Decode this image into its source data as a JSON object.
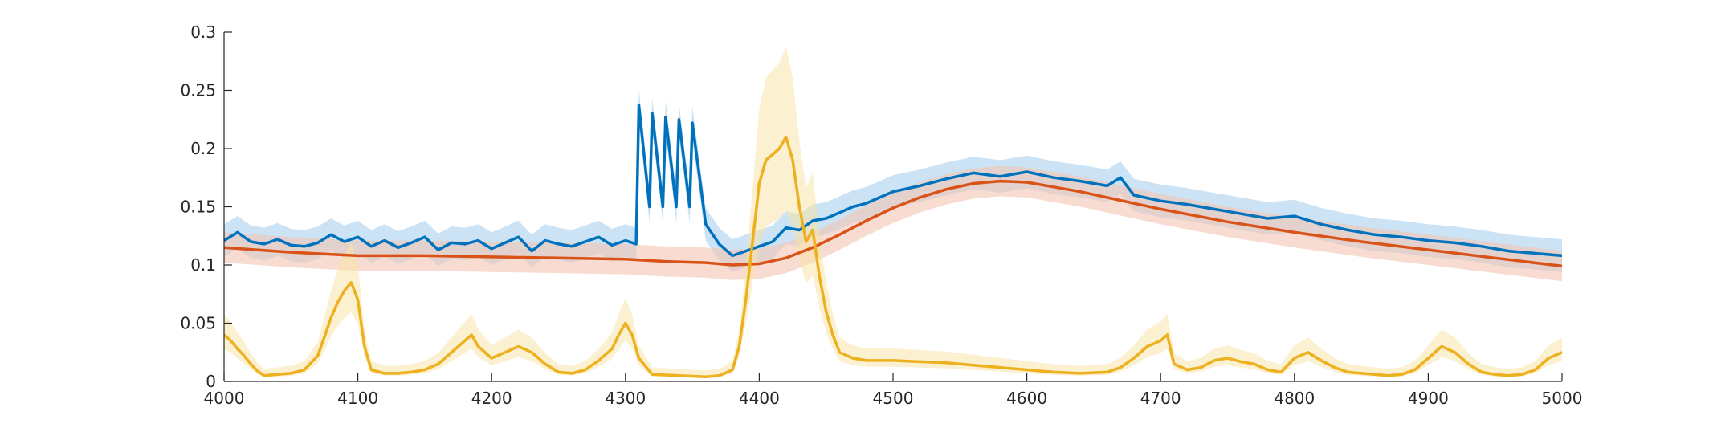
{
  "chart_data": {
    "type": "line",
    "title": "",
    "xlabel": "",
    "ylabel": "",
    "xlim": [
      4000,
      5000
    ],
    "ylim": [
      0,
      0.3
    ],
    "grid": false,
    "legend": "none",
    "x_ticks": [
      4000,
      4100,
      4200,
      4300,
      4400,
      4500,
      4600,
      4700,
      4800,
      4900,
      5000
    ],
    "y_ticks": [
      0,
      0.05,
      0.1,
      0.15,
      0.2,
      0.25,
      0.3
    ],
    "x_tick_labels": [
      "4000",
      "4100",
      "4200",
      "4300",
      "4400",
      "4500",
      "4600",
      "4700",
      "4800",
      "4900",
      "5000"
    ],
    "y_tick_labels": [
      "0",
      "0.05",
      "0.1",
      "0.15",
      "0.2",
      "0.25",
      "0.3"
    ],
    "series": [
      {
        "color": "#0072bd",
        "band_color": "#a8d0ec",
        "x": [
          4000,
          4010,
          4020,
          4030,
          4040,
          4050,
          4060,
          4070,
          4080,
          4090,
          4100,
          4110,
          4120,
          4130,
          4140,
          4150,
          4160,
          4170,
          4180,
          4190,
          4200,
          4210,
          4220,
          4230,
          4240,
          4250,
          4260,
          4270,
          4280,
          4290,
          4300,
          4308,
          4310,
          4318,
          4320,
          4328,
          4330,
          4338,
          4340,
          4348,
          4350,
          4360,
          4370,
          4380,
          4390,
          4400,
          4410,
          4420,
          4430,
          4440,
          4450,
          4460,
          4470,
          4480,
          4490,
          4500,
          4520,
          4540,
          4560,
          4580,
          4600,
          4620,
          4640,
          4660,
          4670,
          4680,
          4700,
          4720,
          4740,
          4760,
          4780,
          4800,
          4820,
          4840,
          4860,
          4880,
          4900,
          4920,
          4940,
          4960,
          4980,
          5000
        ],
        "y": [
          0.121,
          0.128,
          0.12,
          0.118,
          0.122,
          0.117,
          0.116,
          0.119,
          0.126,
          0.12,
          0.124,
          0.116,
          0.121,
          0.115,
          0.119,
          0.124,
          0.113,
          0.119,
          0.118,
          0.121,
          0.114,
          0.119,
          0.124,
          0.112,
          0.121,
          0.118,
          0.116,
          0.12,
          0.124,
          0.117,
          0.121,
          0.118,
          0.237,
          0.15,
          0.23,
          0.15,
          0.227,
          0.15,
          0.225,
          0.15,
          0.222,
          0.135,
          0.118,
          0.108,
          0.112,
          0.116,
          0.12,
          0.132,
          0.13,
          0.138,
          0.14,
          0.145,
          0.15,
          0.153,
          0.158,
          0.163,
          0.168,
          0.174,
          0.179,
          0.176,
          0.18,
          0.175,
          0.172,
          0.168,
          0.175,
          0.16,
          0.155,
          0.152,
          0.148,
          0.144,
          0.14,
          0.142,
          0.135,
          0.13,
          0.126,
          0.124,
          0.121,
          0.119,
          0.116,
          0.112,
          0.11,
          0.108
        ]
      },
      {
        "color": "#d95319",
        "band_color": "#f3c4b2",
        "x": [
          4000,
          4050,
          4100,
          4150,
          4200,
          4250,
          4300,
          4330,
          4360,
          4380,
          4400,
          4420,
          4440,
          4460,
          4480,
          4500,
          4520,
          4540,
          4560,
          4580,
          4600,
          4620,
          4640,
          4660,
          4680,
          4700,
          4750,
          4800,
          4850,
          4900,
          4950,
          5000
        ],
        "y": [
          0.115,
          0.111,
          0.108,
          0.108,
          0.107,
          0.106,
          0.105,
          0.103,
          0.102,
          0.1,
          0.101,
          0.106,
          0.115,
          0.126,
          0.138,
          0.149,
          0.158,
          0.165,
          0.17,
          0.172,
          0.171,
          0.167,
          0.163,
          0.158,
          0.153,
          0.148,
          0.137,
          0.128,
          0.12,
          0.113,
          0.106,
          0.099
        ]
      },
      {
        "color": "#edb120",
        "band_color": "#f8e3a8",
        "x": [
          4000,
          4005,
          4010,
          4015,
          4020,
          4025,
          4030,
          4040,
          4050,
          4060,
          4070,
          4075,
          4080,
          4085,
          4090,
          4095,
          4100,
          4105,
          4110,
          4120,
          4130,
          4140,
          4150,
          4160,
          4170,
          4180,
          4185,
          4190,
          4200,
          4210,
          4220,
          4230,
          4240,
          4250,
          4260,
          4270,
          4280,
          4290,
          4295,
          4300,
          4305,
          4310,
          4320,
          4340,
          4360,
          4370,
          4380,
          4385,
          4390,
          4395,
          4400,
          4405,
          4410,
          4415,
          4420,
          4425,
          4430,
          4435,
          4440,
          4445,
          4450,
          4455,
          4460,
          4470,
          4480,
          4500,
          4520,
          4540,
          4560,
          4580,
          4600,
          4620,
          4640,
          4660,
          4670,
          4680,
          4690,
          4700,
          4705,
          4710,
          4720,
          4730,
          4740,
          4750,
          4760,
          4770,
          4780,
          4790,
          4800,
          4810,
          4820,
          4830,
          4840,
          4860,
          4870,
          4880,
          4890,
          4900,
          4910,
          4920,
          4930,
          4940,
          4950,
          4960,
          4970,
          4980,
          4990,
          5000
        ],
        "y": [
          0.04,
          0.035,
          0.028,
          0.022,
          0.015,
          0.009,
          0.005,
          0.006,
          0.007,
          0.01,
          0.022,
          0.038,
          0.055,
          0.068,
          0.078,
          0.085,
          0.07,
          0.03,
          0.01,
          0.007,
          0.007,
          0.008,
          0.01,
          0.015,
          0.025,
          0.035,
          0.04,
          0.03,
          0.02,
          0.025,
          0.03,
          0.025,
          0.015,
          0.008,
          0.007,
          0.01,
          0.018,
          0.028,
          0.04,
          0.05,
          0.04,
          0.02,
          0.006,
          0.005,
          0.004,
          0.005,
          0.01,
          0.03,
          0.07,
          0.12,
          0.17,
          0.19,
          0.195,
          0.2,
          0.21,
          0.19,
          0.15,
          0.12,
          0.13,
          0.09,
          0.06,
          0.04,
          0.025,
          0.02,
          0.018,
          0.018,
          0.017,
          0.016,
          0.014,
          0.012,
          0.01,
          0.008,
          0.007,
          0.008,
          0.012,
          0.02,
          0.03,
          0.035,
          0.04,
          0.015,
          0.01,
          0.012,
          0.018,
          0.02,
          0.017,
          0.015,
          0.01,
          0.008,
          0.02,
          0.025,
          0.018,
          0.012,
          0.008,
          0.006,
          0.005,
          0.006,
          0.01,
          0.02,
          0.03,
          0.025,
          0.015,
          0.008,
          0.006,
          0.005,
          0.006,
          0.01,
          0.02,
          0.025
        ]
      }
    ]
  }
}
